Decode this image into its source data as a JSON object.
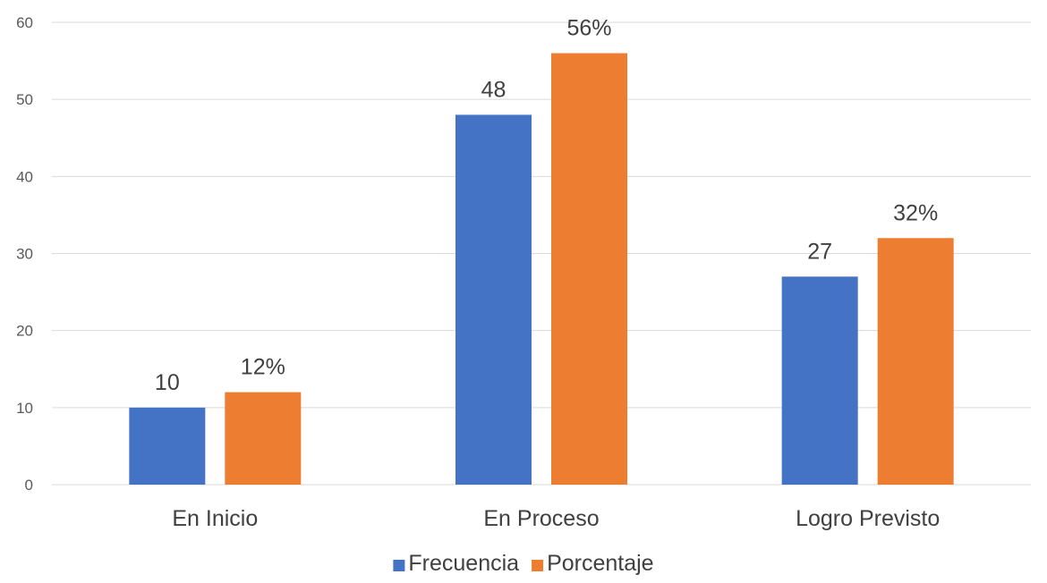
{
  "chart_data": {
    "type": "bar",
    "title": "",
    "xlabel": "",
    "ylabel": "",
    "categories": [
      "En Inicio",
      "En Proceso",
      "Logro Previsto"
    ],
    "series": [
      {
        "name": "Frecuencia",
        "color": "#4472c4",
        "values": [
          10,
          48,
          27
        ],
        "labels": [
          "10",
          "48",
          "27"
        ]
      },
      {
        "name": "Porcentaje",
        "color": "#ed7d31",
        "values": [
          12,
          56,
          32
        ],
        "labels": [
          "12%",
          "56%",
          "32%"
        ]
      }
    ],
    "ylim": [
      0,
      60
    ],
    "yticks": [
      0,
      10,
      20,
      30,
      40,
      50,
      60
    ],
    "grid": true,
    "legend": "bottom"
  }
}
